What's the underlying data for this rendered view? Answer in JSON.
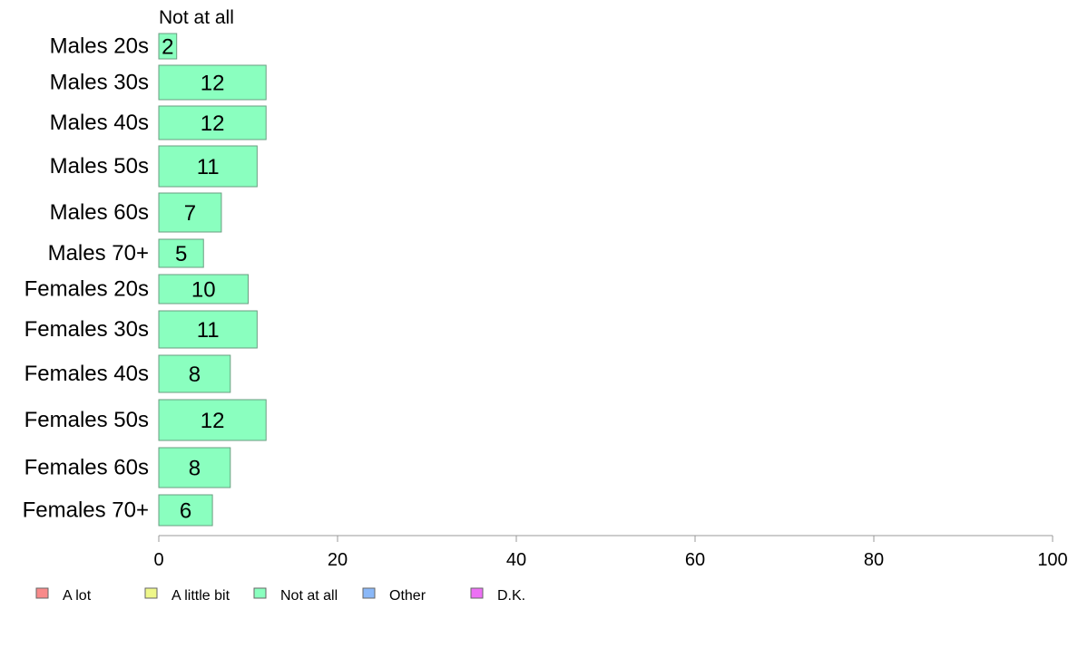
{
  "chart_data": {
    "type": "bar",
    "orientation": "horizontal",
    "stacked": true,
    "series_header": "Not at all",
    "categories": [
      "Males 20s",
      "Males 30s",
      "Males 40s",
      "Males 50s",
      "Males 60s",
      "Males 70+",
      "Females 20s",
      "Females 30s",
      "Females 40s",
      "Females 50s",
      "Females 60s",
      "Females 70+"
    ],
    "series": [
      {
        "name": "A lot",
        "color": "#f88a8a",
        "values": [
          0,
          0,
          0,
          0,
          0,
          0,
          0,
          0,
          0,
          0,
          0,
          0
        ]
      },
      {
        "name": "A little bit",
        "color": "#eef78a",
        "values": [
          0,
          0,
          0,
          0,
          0,
          0,
          0,
          0,
          0,
          0,
          0,
          0
        ]
      },
      {
        "name": "Not at all",
        "color": "#8affbf",
        "values": [
          2,
          12,
          12,
          11,
          7,
          5,
          10,
          11,
          8,
          12,
          8,
          6
        ],
        "labels": [
          "2",
          "12",
          "12",
          "11",
          "7",
          "5",
          "10",
          "11",
          "8",
          "12",
          "8",
          "6"
        ]
      },
      {
        "name": "Other",
        "color": "#8ab8f8",
        "values": [
          0,
          0,
          0,
          0,
          0,
          0,
          0,
          0,
          0,
          0,
          0,
          0
        ]
      },
      {
        "name": "D.K.",
        "color": "#ec70f4",
        "values": [
          0,
          0,
          0,
          0,
          0,
          0,
          0,
          0,
          0,
          0,
          0,
          0
        ]
      }
    ],
    "xlim": [
      0,
      100
    ],
    "xticks": [
      "0",
      "20",
      "40",
      "60",
      "80",
      "100"
    ],
    "grid": false,
    "legend_position": "bottom-left"
  }
}
